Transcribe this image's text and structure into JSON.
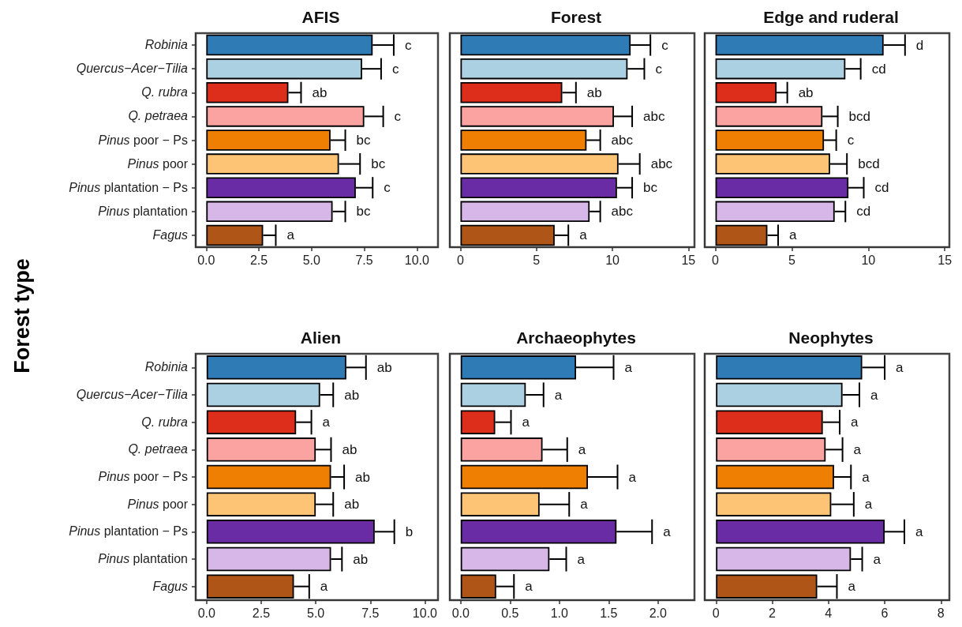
{
  "chart_data": [
    {
      "type": "bar",
      "orientation": "horizontal",
      "title": "AFIS",
      "ylabel": "Forest type",
      "categories": [
        "Robinia",
        "Quercus−Acer−Tilia",
        "Q. rubra",
        "Q. petraea",
        "Pinus poor − Ps",
        "Pinus poor",
        "Pinus plantation − Ps",
        "Pinus plantation",
        "Fagus"
      ],
      "values": [
        7.9,
        7.4,
        3.9,
        7.5,
        5.9,
        6.3,
        7.1,
        6.0,
        2.7
      ],
      "errors": [
        [
          7.9,
          8.9
        ],
        [
          7.4,
          8.3
        ],
        [
          3.9,
          4.5
        ],
        [
          7.5,
          8.4
        ],
        [
          5.9,
          6.6
        ],
        [
          6.3,
          7.3
        ],
        [
          7.1,
          7.9
        ],
        [
          6.0,
          6.6
        ],
        [
          2.7,
          3.3
        ]
      ],
      "colors": [
        "#2e7bb6",
        "#abd0e2",
        "#dc2e1a",
        "#fba3a0",
        "#ee7f03",
        "#fcc474",
        "#6a2ca4",
        "#d7b6e8",
        "#b05518"
      ],
      "xlim": [
        -0.5,
        11.0
      ],
      "xticks": [
        {
          "value": 0,
          "label": "0.0"
        },
        2.5,
        {
          "value": 5,
          "label": "5.0"
        },
        7.5,
        {
          "value": 10,
          "label": "10.0"
        }
      ],
      "annotations": [
        "c",
        "c",
        "ab",
        "c",
        "bc",
        "bc",
        "c",
        "bc",
        "a"
      ]
    },
    {
      "type": "bar",
      "orientation": "horizontal",
      "title": "Forest",
      "tick_labels": "x",
      "categories": [
        null,
        null,
        null,
        null,
        null,
        null,
        null,
        null,
        null
      ],
      "values": [
        11.2,
        11.0,
        6.7,
        10.1,
        8.3,
        10.4,
        10.3,
        8.5,
        6.2
      ],
      "errors": [
        [
          11.2,
          12.5
        ],
        [
          11.0,
          12.1
        ],
        [
          6.7,
          7.6
        ],
        [
          10.1,
          11.3
        ],
        [
          8.3,
          9.2
        ],
        [
          10.4,
          11.8
        ],
        [
          10.3,
          11.3
        ],
        [
          8.5,
          9.2
        ],
        [
          6.2,
          7.1
        ]
      ],
      "colors": [
        "#2e7bb6",
        "#abd0e2",
        "#dc2e1a",
        "#fba3a0",
        "#ee7f03",
        "#fcc474",
        "#6a2ca4",
        "#d7b6e8",
        "#b05518"
      ],
      "xlim": [
        -0.7,
        15.4
      ],
      "xticks": [
        0,
        5,
        10,
        15
      ],
      "annotations": [
        "c",
        "c",
        "ab",
        "abc",
        "abc",
        "abc",
        "bc",
        "abc",
        "a"
      ]
    },
    {
      "type": "bar",
      "orientation": "horizontal",
      "title": "Edge and ruderal",
      "tick_labels": "x",
      "categories": [
        null,
        null,
        null,
        null,
        null,
        null,
        null,
        null,
        null
      ],
      "values": [
        11.0,
        8.5,
        4.0,
        7.0,
        7.1,
        7.5,
        8.7,
        7.8,
        3.4
      ],
      "errors": [
        [
          11.0,
          12.4
        ],
        [
          8.5,
          9.5
        ],
        [
          4.0,
          4.7
        ],
        [
          7.0,
          8.0
        ],
        [
          7.1,
          7.9
        ],
        [
          7.5,
          8.6
        ],
        [
          8.7,
          9.7
        ],
        [
          7.8,
          8.5
        ],
        [
          3.4,
          4.1
        ]
      ],
      "colors": [
        "#2e7bb6",
        "#abd0e2",
        "#dc2e1a",
        "#fba3a0",
        "#ee7f03",
        "#fcc474",
        "#6a2ca4",
        "#d7b6e8",
        "#b05518"
      ],
      "xlim": [
        -0.7,
        15.3
      ],
      "xticks": [
        0,
        5,
        10,
        15
      ],
      "annotations": [
        "d",
        "cd",
        "ab",
        "bcd",
        "c",
        "bcd",
        "cd",
        "cd",
        "a"
      ]
    },
    {
      "type": "bar",
      "orientation": "horizontal",
      "title": "Alien",
      "categories": [
        "Robinia",
        "Quercus−Acer−Tilia",
        "Q. rubra",
        "Q. petraea",
        "Pinus poor − Ps",
        "Pinus poor",
        "Pinus plantation − Ps",
        "Pinus plantation",
        "Fagus"
      ],
      "values": [
        6.4,
        5.2,
        4.1,
        5.0,
        5.7,
        5.0,
        7.7,
        5.7,
        4.0
      ],
      "errors": [
        [
          6.4,
          7.3
        ],
        [
          5.2,
          5.8
        ],
        [
          4.1,
          4.8
        ],
        [
          5.0,
          5.7
        ],
        [
          5.7,
          6.3
        ],
        [
          5.0,
          5.8
        ],
        [
          7.7,
          8.6
        ],
        [
          5.7,
          6.2
        ],
        [
          4.0,
          4.7
        ]
      ],
      "colors": [
        "#2e7bb6",
        "#abd0e2",
        "#dc2e1a",
        "#fba3a0",
        "#ee7f03",
        "#fcc474",
        "#6a2ca4",
        "#d7b6e8",
        "#b05518"
      ],
      "xlim": [
        -0.5,
        10.6
      ],
      "xticks": [
        {
          "value": 0,
          "label": "0.0"
        },
        2.5,
        {
          "value": 5,
          "label": "5.0"
        },
        7.5,
        {
          "value": 10,
          "label": "10.0"
        }
      ],
      "annotations": [
        "ab",
        "ab",
        "a",
        "ab",
        "ab",
        "ab",
        "b",
        "ab",
        "a"
      ]
    },
    {
      "type": "bar",
      "orientation": "horizontal",
      "title": "Archaeophytes",
      "tick_labels": "x",
      "categories": [
        null,
        null,
        null,
        null,
        null,
        null,
        null,
        null,
        null
      ],
      "values": [
        1.17,
        0.66,
        0.35,
        0.83,
        1.29,
        0.8,
        1.58,
        0.9,
        0.36
      ],
      "errors": [
        [
          1.17,
          1.55
        ],
        [
          0.66,
          0.84
        ],
        [
          0.35,
          0.51
        ],
        [
          0.83,
          1.08
        ],
        [
          1.29,
          1.59
        ],
        [
          0.8,
          1.1
        ],
        [
          1.58,
          1.94
        ],
        [
          0.9,
          1.07
        ],
        [
          0.36,
          0.54
        ]
      ],
      "colors": [
        "#2e7bb6",
        "#abd0e2",
        "#dc2e1a",
        "#fba3a0",
        "#ee7f03",
        "#fcc474",
        "#6a2ca4",
        "#d7b6e8",
        "#b05518"
      ],
      "xlim": [
        -0.11,
        2.37
      ],
      "xticks": [
        {
          "value": 0,
          "label": "0.0"
        },
        0.5,
        {
          "value": 1,
          "label": "1.0"
        },
        1.5,
        {
          "value": 2,
          "label": "2.0"
        }
      ],
      "annotations": [
        "a",
        "a",
        "a",
        "a",
        "a",
        "a",
        "a",
        "a",
        "a"
      ]
    },
    {
      "type": "bar",
      "orientation": "horizontal",
      "title": "Neophytes",
      "tick_labels": "x",
      "categories": [
        null,
        null,
        null,
        null,
        null,
        null,
        null,
        null,
        null
      ],
      "values": [
        5.2,
        4.5,
        3.8,
        3.9,
        4.2,
        4.1,
        6.0,
        4.8,
        3.6
      ],
      "errors": [
        [
          5.2,
          6.0
        ],
        [
          4.5,
          5.1
        ],
        [
          3.8,
          4.4
        ],
        [
          3.9,
          4.5
        ],
        [
          4.2,
          4.8
        ],
        [
          4.1,
          4.9
        ],
        [
          6.0,
          6.7
        ],
        [
          4.8,
          5.2
        ],
        [
          3.6,
          4.3
        ]
      ],
      "colors": [
        "#2e7bb6",
        "#abd0e2",
        "#dc2e1a",
        "#fba3a0",
        "#ee7f03",
        "#fcc474",
        "#6a2ca4",
        "#d7b6e8",
        "#b05518"
      ],
      "xlim": [
        -0.4,
        8.3
      ],
      "xticks": [
        0,
        2,
        4,
        6,
        8
      ],
      "annotations": [
        "a",
        "a",
        "a",
        "a",
        "a",
        "a",
        "a",
        "a",
        "a"
      ]
    }
  ]
}
